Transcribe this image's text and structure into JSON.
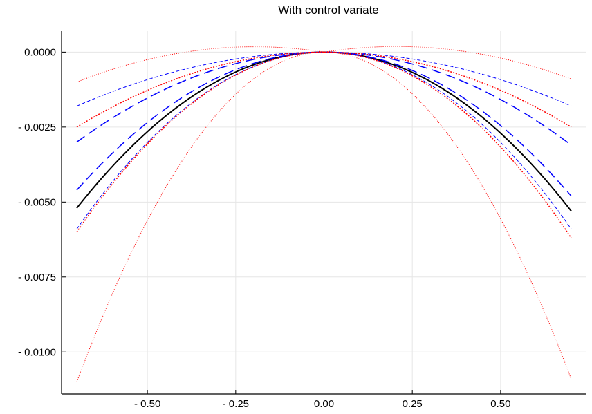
{
  "chart_data": {
    "type": "line",
    "title": "With control variate",
    "xlabel": "",
    "ylabel": "",
    "xlim": [
      -0.7,
      0.7
    ],
    "ylim": [
      -0.0114,
      0.0007
    ],
    "grid": true,
    "x_ticks": [
      {
        "value": -0.5,
        "label": "- 0.50"
      },
      {
        "value": -0.25,
        "label": "- 0.25"
      },
      {
        "value": 0.0,
        "label": "0.00"
      },
      {
        "value": 0.25,
        "label": "0.25"
      },
      {
        "value": 0.5,
        "label": "0.50"
      }
    ],
    "y_ticks": [
      {
        "value": 0.0,
        "label": "0.0000"
      },
      {
        "value": -0.0025,
        "label": "- 0.0025"
      },
      {
        "value": -0.005,
        "label": "- 0.0050"
      },
      {
        "value": -0.0075,
        "label": "- 0.0075"
      },
      {
        "value": -0.01,
        "label": "- 0.0100"
      }
    ],
    "series": [
      {
        "x": [
          -0.7,
          0.0,
          0.7
        ],
        "y": [
          -0.0052,
          0.0,
          -0.0053
        ],
        "color": "#000000",
        "dash": "solid",
        "width": 2
      },
      {
        "x": [
          -0.7,
          0.0,
          0.7
        ],
        "y": [
          -0.0046,
          0.0,
          -0.0048
        ],
        "color": "#0000ff",
        "dash": "long-dash",
        "width": 1.5
      },
      {
        "x": [
          -0.7,
          0.0,
          0.7
        ],
        "y": [
          -0.003,
          0.0,
          -0.0031
        ],
        "color": "#0000ff",
        "dash": "long-dash",
        "width": 1.5
      },
      {
        "x": [
          -0.7,
          0.0,
          0.7
        ],
        "y": [
          -0.0018,
          0.0,
          -0.0018
        ],
        "color": "#0000ff",
        "dash": "short-dash",
        "width": 1
      },
      {
        "x": [
          -0.7,
          0.0,
          0.7
        ],
        "y": [
          -0.0059,
          0.0,
          -0.0059
        ],
        "color": "#0000ff",
        "dash": "short-dash",
        "width": 1
      },
      {
        "x": [
          -0.7,
          0.0,
          0.7
        ],
        "y": [
          -0.0025,
          0.0,
          -0.0025
        ],
        "color": "#ff0000",
        "dash": "dotted",
        "width": 1.5
      },
      {
        "x": [
          -0.7,
          0.0,
          0.7
        ],
        "y": [
          -0.006,
          0.0,
          -0.0062
        ],
        "color": "#ff0000",
        "dash": "dotted",
        "width": 1.5
      },
      {
        "x": [
          -0.7,
          0.0,
          0.7
        ],
        "y": [
          -0.001,
          0.0,
          -0.0009
        ],
        "color": "#ff0000",
        "dash": "fine-dot",
        "width": 1,
        "peak": 0.00032
      },
      {
        "x": [
          -0.7,
          0.0,
          0.7
        ],
        "y": [
          -0.011,
          0.0,
          -0.0109
        ],
        "color": "#ff0000",
        "dash": "fine-dot",
        "width": 1
      }
    ]
  }
}
